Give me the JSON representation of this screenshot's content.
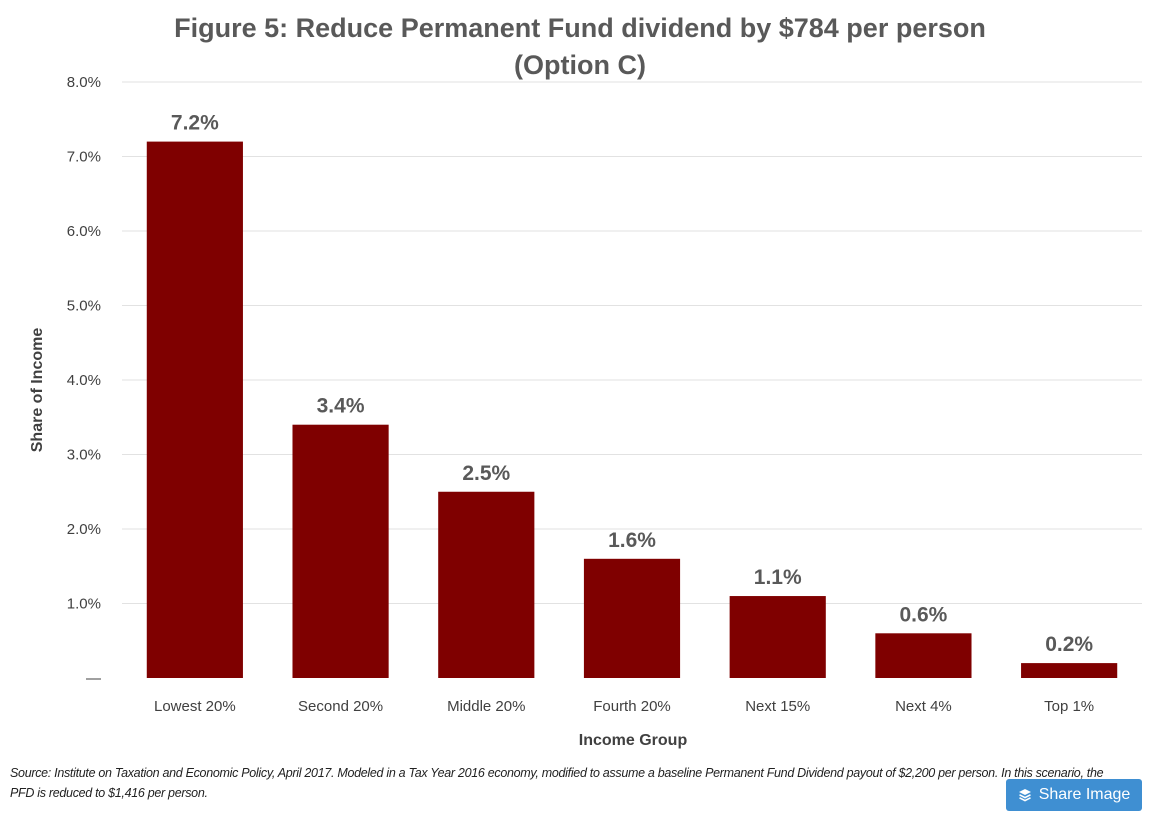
{
  "chart_data": {
    "type": "bar",
    "title": "Figure 5: Reduce Permanent Fund dividend by $784 per person",
    "subtitle": "(Option C)",
    "xlabel": "Income Group",
    "ylabel": "Share of Income",
    "categories": [
      "Lowest 20%",
      "Second 20%",
      "Middle 20%",
      "Fourth 20%",
      "Next 15%",
      "Next 4%",
      "Top 1%"
    ],
    "values": [
      7.2,
      3.4,
      2.5,
      1.6,
      1.1,
      0.6,
      0.2
    ],
    "data_labels": [
      "7.2%",
      "3.4%",
      "2.5%",
      "1.6%",
      "1.1%",
      "0.6%",
      "0.2%"
    ],
    "y_ticks": [
      "—",
      "1.0%",
      "2.0%",
      "3.0%",
      "4.0%",
      "5.0%",
      "6.0%",
      "7.0%",
      "8.0%"
    ],
    "ylim": [
      0,
      8
    ],
    "grid": true,
    "bar_color": "#7f0000"
  },
  "footer": {
    "source": "Source: Institute on Taxation and Economic Policy, April 2017.  Modeled in a Tax Year 2016 economy, modified to assume a baseline Permanent Fund Dividend payout of $2,200 per person. In this scenario, the PFD is reduced to $1,416 per person."
  },
  "share_button": {
    "label": "Share Image",
    "icon": "layers-icon",
    "color": "#3f8fd2"
  }
}
